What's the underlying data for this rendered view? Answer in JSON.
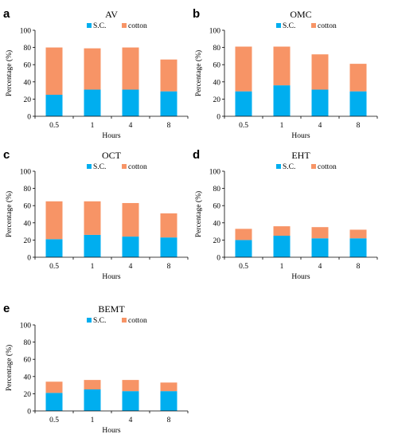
{
  "colors": {
    "sc": "#00aeef",
    "cotton": "#f79466",
    "axis": "#000000"
  },
  "chart_data": [
    {
      "type": "bar",
      "stacked": true,
      "panel": "a",
      "title": "AV",
      "categories": [
        "0.5",
        "1",
        "4",
        "8"
      ],
      "series": [
        {
          "name": "S.C.",
          "values": [
            25,
            31,
            31,
            29
          ]
        },
        {
          "name": "cotton",
          "values": [
            55,
            48,
            49,
            37
          ]
        }
      ],
      "xlabel": "Hours",
      "ylabel": "Percentage (%)",
      "ylim": [
        0,
        100
      ],
      "yticks": [
        "0",
        "20",
        "40",
        "60",
        "80",
        "100"
      ],
      "grid": false,
      "legend": "top"
    },
    {
      "type": "bar",
      "stacked": true,
      "panel": "b",
      "title": "OMC",
      "categories": [
        "0.5",
        "1",
        "4",
        "8"
      ],
      "series": [
        {
          "name": "S.C.",
          "values": [
            29,
            36,
            31,
            29
          ]
        },
        {
          "name": "cotton",
          "values": [
            52,
            45,
            41,
            32
          ]
        }
      ],
      "xlabel": "Hours",
      "ylabel": "Percentage (%)",
      "ylim": [
        0,
        100
      ],
      "yticks": [
        "0",
        "20",
        "40",
        "60",
        "80",
        "100"
      ],
      "grid": false,
      "legend": "top"
    },
    {
      "type": "bar",
      "stacked": true,
      "panel": "c",
      "title": "OCT",
      "categories": [
        "0.5",
        "1",
        "4",
        "8"
      ],
      "series": [
        {
          "name": "S.C.",
          "values": [
            21,
            26,
            24,
            23
          ]
        },
        {
          "name": "cotton",
          "values": [
            44,
            39,
            39,
            28
          ]
        }
      ],
      "xlabel": "Hours",
      "ylabel": "Percentage (%)",
      "ylim": [
        0,
        100
      ],
      "yticks": [
        "0",
        "20",
        "40",
        "60",
        "80",
        "100"
      ],
      "grid": false,
      "legend": "top"
    },
    {
      "type": "bar",
      "stacked": true,
      "panel": "d",
      "title": "EHT",
      "categories": [
        "0.5",
        "1",
        "4",
        "8"
      ],
      "series": [
        {
          "name": "S.C.",
          "values": [
            20,
            25,
            22,
            22
          ]
        },
        {
          "name": "cotton",
          "values": [
            13,
            11,
            13,
            10
          ]
        }
      ],
      "xlabel": "Hours",
      "ylabel": "Percentage (%)",
      "ylim": [
        0,
        100
      ],
      "yticks": [
        "0",
        "20",
        "40",
        "60",
        "80",
        "100"
      ],
      "grid": false,
      "legend": "top"
    },
    {
      "type": "bar",
      "stacked": true,
      "panel": "e",
      "title": "BEMT",
      "categories": [
        "0.5",
        "1",
        "4",
        "8"
      ],
      "series": [
        {
          "name": "S.C.",
          "values": [
            21,
            25,
            23,
            23
          ]
        },
        {
          "name": "cotton",
          "values": [
            13,
            11,
            13,
            10
          ]
        }
      ],
      "xlabel": "Hours",
      "ylabel": "Percentage (%)",
      "ylim": [
        0,
        100
      ],
      "yticks": [
        "0",
        "20",
        "40",
        "60",
        "80",
        "100"
      ],
      "grid": false,
      "legend": "top"
    }
  ]
}
